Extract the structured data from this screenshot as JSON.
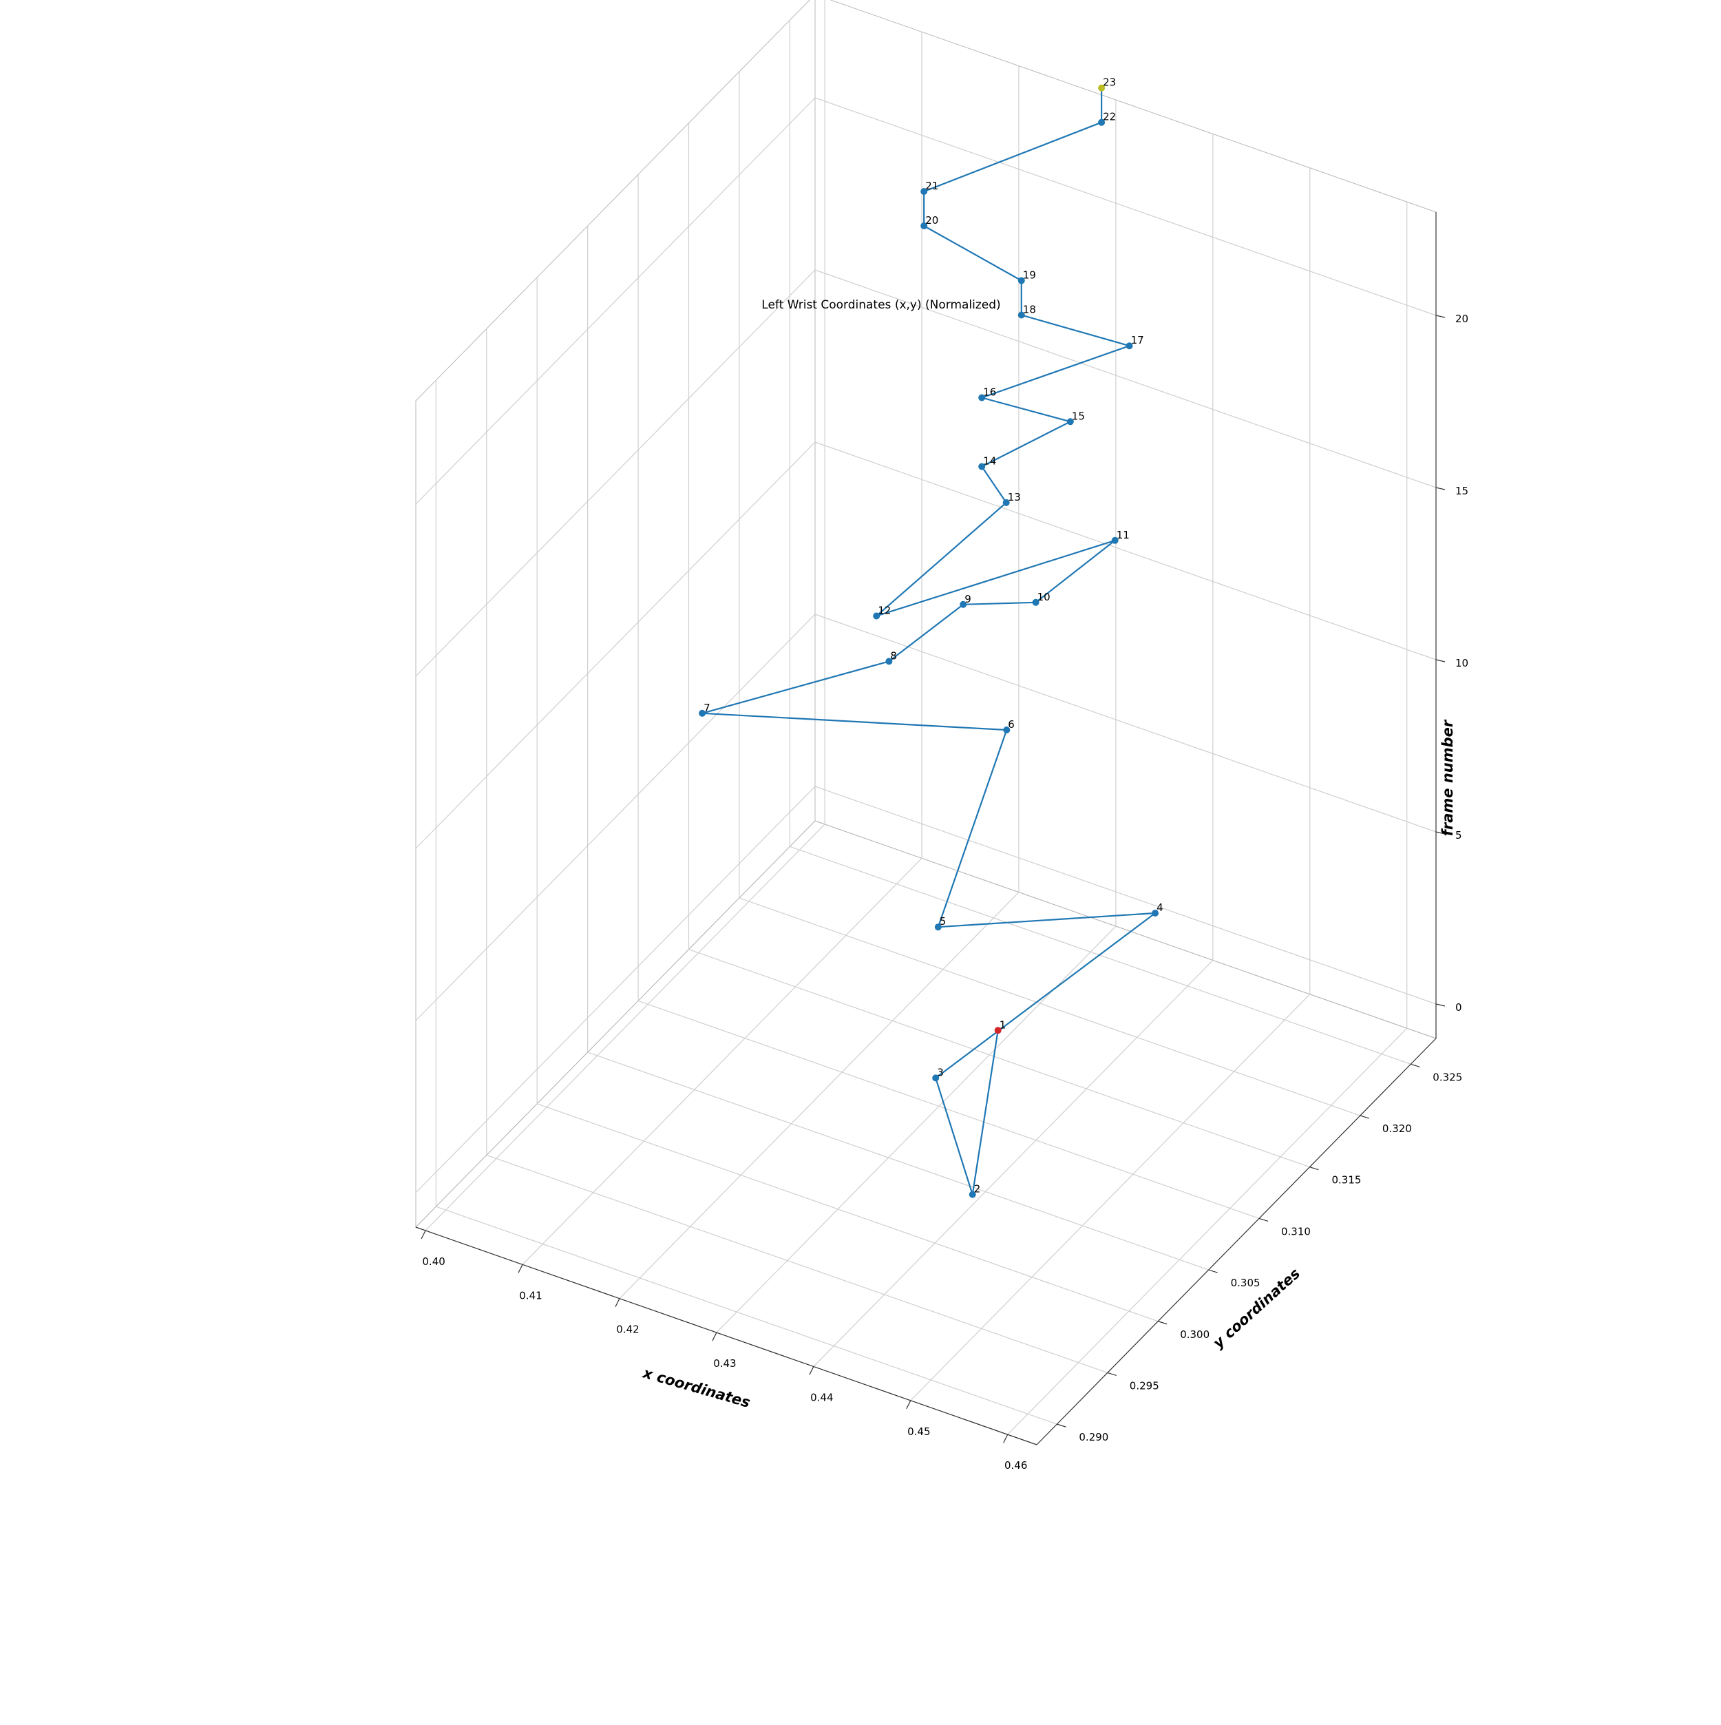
{
  "chart_data": {
    "type": "line",
    "projection": "3d",
    "title": "Left Wrist Coordinates (x,y) (Normalized)",
    "xlabel": "x coordinates",
    "ylabel": "y coordinates",
    "zlabel": "frame number",
    "x_ticks": [
      "0.40",
      "0.41",
      "0.42",
      "0.43",
      "0.44",
      "0.45",
      "0.46"
    ],
    "y_ticks": [
      "0.290",
      "0.295",
      "0.300",
      "0.305",
      "0.310",
      "0.315",
      "0.320",
      "0.325"
    ],
    "z_ticks": [
      "0",
      "5",
      "10",
      "15",
      "20"
    ],
    "grid": true,
    "colors": {
      "series": "#1f77b4",
      "start_point": "#d62728",
      "end_point": "#bcbd22"
    },
    "series": [
      {
        "labels": [
          "1",
          "2",
          "3",
          "4",
          "5",
          "6",
          "7",
          "8",
          "9",
          "10",
          "11",
          "12",
          "13",
          "14",
          "15",
          "16",
          "17",
          "18",
          "19",
          "20",
          "21",
          "22",
          "23"
        ],
        "x": [
          0.434,
          0.447,
          0.438,
          0.445,
          0.432,
          0.425,
          0.403,
          0.416,
          0.42,
          0.428,
          0.432,
          0.422,
          0.426,
          0.424,
          0.43,
          0.424,
          0.434,
          0.426,
          0.426,
          0.417,
          0.417,
          0.428,
          0.428
        ],
        "y": [
          0.312,
          0.297,
          0.302,
          0.317,
          0.308,
          0.3215,
          0.3125,
          0.3185,
          0.322,
          0.3215,
          0.3255,
          0.3115,
          0.3205,
          0.32,
          0.323,
          0.32,
          0.325,
          0.322,
          0.322,
          0.321,
          0.321,
          0.328,
          0.328
        ],
        "z": [
          1,
          2,
          3,
          4,
          5,
          6,
          7,
          8,
          9,
          10,
          11,
          12,
          13,
          14,
          15,
          16,
          17,
          18,
          19,
          20,
          21,
          22,
          23
        ]
      }
    ]
  }
}
